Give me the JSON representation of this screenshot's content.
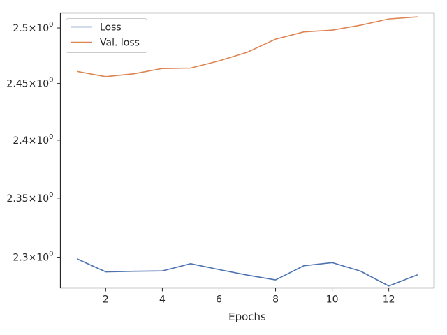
{
  "chart_data": {
    "type": "line",
    "title": "",
    "xlabel": "Epochs",
    "ylabel": "",
    "yscale": "log",
    "xlim": [
      0.4,
      13.6
    ],
    "ylim": [
      2.2745,
      2.5137
    ],
    "grid": false,
    "legend_position": "top-left",
    "x_ticks": [
      2,
      4,
      6,
      8,
      10,
      12
    ],
    "x_tick_labels": [
      "2",
      "4",
      "6",
      "8",
      "10",
      "12"
    ],
    "y_ticks": [
      2.3,
      2.35,
      2.4,
      2.45,
      2.5
    ],
    "y_tick_labels": [
      {
        "mantissa": "2.3",
        "times": "×",
        "base": "10",
        "exp": "0"
      },
      {
        "mantissa": "2.35",
        "times": "×",
        "base": "10",
        "exp": "0"
      },
      {
        "mantissa": "2.4",
        "times": "×",
        "base": "10",
        "exp": "0"
      },
      {
        "mantissa": "2.45",
        "times": "×",
        "base": "10",
        "exp": "0"
      },
      {
        "mantissa": "2.5",
        "times": "×",
        "base": "10",
        "exp": "0"
      }
    ],
    "x": [
      1,
      2,
      3,
      4,
      5,
      6,
      7,
      8,
      9,
      10,
      11,
      12,
      13
    ],
    "series": [
      {
        "name": "Loss",
        "color": "#4c72b0",
        "values": [
          2.2985,
          2.2878,
          2.2883,
          2.2886,
          2.2946,
          2.2897,
          2.2851,
          2.2811,
          2.2929,
          2.2955,
          2.2884,
          2.2761,
          2.2852
        ]
      },
      {
        "name": "Val. loss",
        "color": "#dd8452",
        "values": [
          2.4607,
          2.4561,
          2.4587,
          2.4634,
          2.4638,
          2.4702,
          2.478,
          2.4898,
          2.4964,
          2.498,
          2.5025,
          2.5082,
          2.5101
        ]
      }
    ]
  }
}
